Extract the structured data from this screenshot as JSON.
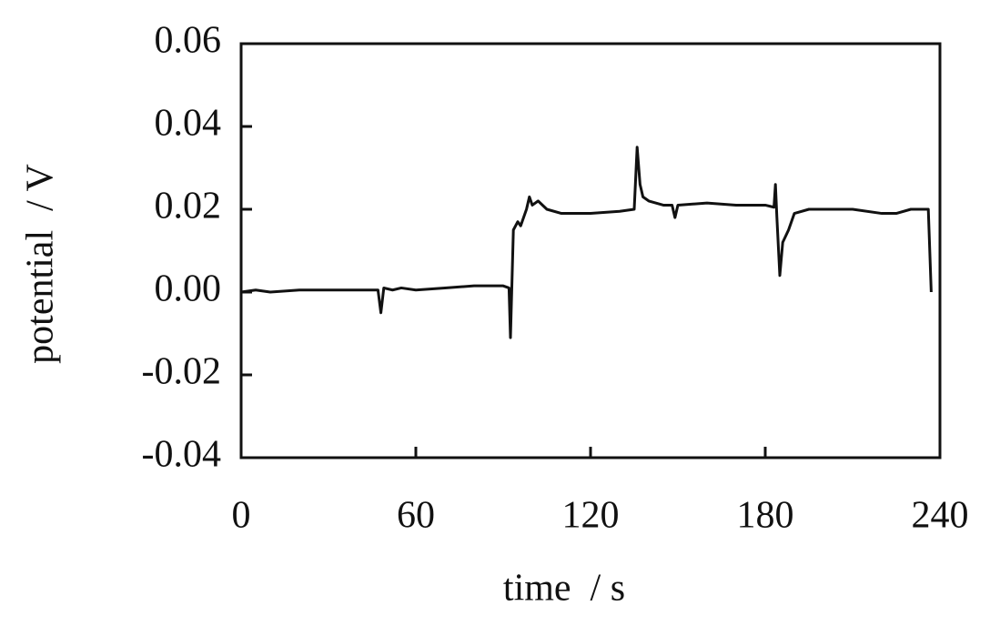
{
  "chart_data": {
    "type": "line",
    "x_label": "time  / s",
    "y_label": "potential  / V",
    "color": "#111111",
    "x": [
      0,
      5,
      10,
      20,
      30,
      40,
      47,
      48,
      49,
      52,
      55,
      60,
      70,
      80,
      90,
      92,
      92.5,
      93.5,
      95,
      96,
      98,
      99,
      100,
      102,
      105,
      110,
      120,
      130,
      135,
      136,
      137,
      138,
      140,
      145,
      148,
      149,
      150,
      160,
      170,
      180,
      183,
      183.5,
      184,
      185,
      186,
      188,
      190,
      195,
      200,
      210,
      220,
      225,
      230,
      236,
      237
    ],
    "values": [
      0.0,
      0.0005,
      0.0,
      0.0005,
      0.0005,
      0.0005,
      0.0005,
      -0.005,
      0.001,
      0.0005,
      0.001,
      0.0005,
      0.001,
      0.0015,
      0.0015,
      0.001,
      -0.011,
      0.015,
      0.017,
      0.016,
      0.02,
      0.023,
      0.021,
      0.022,
      0.02,
      0.019,
      0.019,
      0.0195,
      0.02,
      0.035,
      0.026,
      0.023,
      0.022,
      0.021,
      0.021,
      0.018,
      0.021,
      0.0215,
      0.021,
      0.021,
      0.0205,
      0.026,
      0.018,
      0.004,
      0.012,
      0.015,
      0.019,
      0.02,
      0.02,
      0.02,
      0.019,
      0.019,
      0.02,
      0.02,
      0.0
    ],
    "xlim": [
      0,
      240
    ],
    "xticks": [
      0,
      60,
      120,
      180,
      240
    ],
    "ylim": [
      -0.04,
      0.06
    ],
    "yticks": [
      -0.04,
      -0.02,
      {
        "value": 0,
        "label": "0.00"
      },
      0.02,
      0.04,
      0.06
    ]
  }
}
